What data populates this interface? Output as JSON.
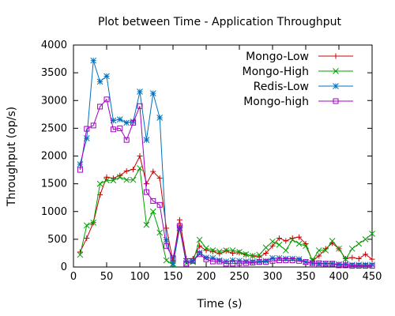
{
  "chart_data": {
    "type": "line",
    "title": "Plot between Time - Application Throughput",
    "xlabel": "Time (s)",
    "ylabel": "Throughput (op/s)",
    "xlim": [
      0,
      450
    ],
    "ylim": [
      0,
      4000
    ],
    "xticks": [
      0,
      50,
      100,
      150,
      200,
      250,
      300,
      350,
      400,
      450
    ],
    "yticks": [
      0,
      500,
      1000,
      1500,
      2000,
      2500,
      3000,
      3500,
      4000
    ],
    "grid": false,
    "legend_position": "top-right",
    "x": [
      10,
      20,
      30,
      40,
      50,
      60,
      70,
      80,
      90,
      100,
      110,
      120,
      130,
      140,
      150,
      160,
      170,
      180,
      190,
      200,
      210,
      220,
      230,
      240,
      250,
      260,
      270,
      280,
      290,
      300,
      310,
      320,
      330,
      340,
      350,
      360,
      370,
      380,
      390,
      400,
      410,
      420,
      430,
      440,
      450
    ],
    "series": [
      {
        "name": "Mongo-Low",
        "color": "#cc0000",
        "marker": "plus",
        "values": [
          270,
          520,
          800,
          1300,
          1620,
          1600,
          1650,
          1730,
          1760,
          2000,
          1500,
          1720,
          1600,
          700,
          100,
          850,
          150,
          150,
          380,
          300,
          280,
          240,
          290,
          250,
          260,
          220,
          200,
          180,
          250,
          380,
          520,
          470,
          520,
          540,
          420,
          110,
          200,
          330,
          430,
          330,
          150,
          170,
          150,
          230,
          140
        ]
      },
      {
        "name": "Mongo-High",
        "color": "#00a000",
        "marker": "cross",
        "values": [
          220,
          750,
          800,
          1500,
          1560,
          1560,
          1620,
          1570,
          1570,
          1780,
          760,
          1000,
          620,
          120,
          40,
          700,
          70,
          90,
          490,
          340,
          300,
          280,
          300,
          300,
          270,
          230,
          200,
          220,
          350,
          460,
          400,
          300,
          490,
          420,
          380,
          120,
          300,
          300,
          470,
          330,
          140,
          330,
          420,
          500,
          600
        ]
      },
      {
        "name": "Redis-Low",
        "color": "#0070c0",
        "marker": "star",
        "values": [
          1850,
          2320,
          3720,
          3340,
          3440,
          2640,
          2660,
          2600,
          2620,
          3160,
          2290,
          3130,
          2690,
          490,
          60,
          710,
          110,
          110,
          260,
          170,
          160,
          120,
          100,
          120,
          110,
          100,
          90,
          100,
          110,
          160,
          160,
          150,
          150,
          140,
          90,
          70,
          60,
          60,
          60,
          50,
          50,
          40,
          40,
          40,
          40
        ]
      },
      {
        "name": "Mongo-high",
        "color": "#a000c0",
        "marker": "square",
        "values": [
          1750,
          2490,
          2550,
          2890,
          3020,
          2480,
          2500,
          2290,
          2600,
          2900,
          1350,
          1190,
          1120,
          380,
          160,
          740,
          60,
          110,
          230,
          140,
          100,
          100,
          60,
          60,
          70,
          70,
          80,
          90,
          90,
          110,
          120,
          120,
          120,
          110,
          90,
          70,
          70,
          60,
          60,
          30,
          30,
          20,
          20,
          20,
          20
        ]
      }
    ]
  }
}
